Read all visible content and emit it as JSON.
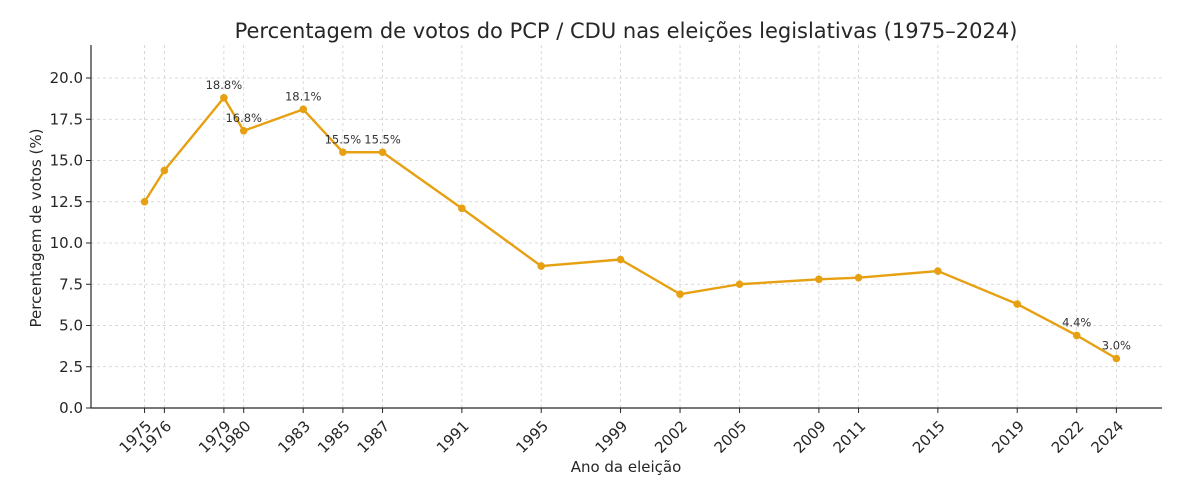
{
  "chart_data": {
    "type": "line",
    "title": "Percentagem de votos do PCP / CDU nas eleições legislativas (1975–2024)",
    "xlabel": "Ano da eleição",
    "ylabel": "Percentagem de votos (%)",
    "x": [
      1975,
      1976,
      1979,
      1980,
      1983,
      1985,
      1987,
      1991,
      1995,
      1999,
      2002,
      2005,
      2009,
      2011,
      2015,
      2019,
      2022,
      2024
    ],
    "x_tick_labels": [
      "1975",
      "1976",
      "1979",
      "1980",
      "1983",
      "1985",
      "1987",
      "1991",
      "1995",
      "1999",
      "2002",
      "2005",
      "2009",
      "2011",
      "2015",
      "2019",
      "2022",
      "2024"
    ],
    "series": [
      {
        "name": "PCP / CDU",
        "values": [
          12.5,
          14.4,
          18.8,
          16.8,
          18.1,
          15.5,
          15.5,
          12.1,
          8.6,
          9.0,
          6.9,
          7.5,
          7.8,
          7.9,
          8.3,
          6.3,
          4.4,
          3.0
        ],
        "color": "#e6a011"
      }
    ],
    "y_ticks": [
      "0.0",
      "2.5",
      "5.0",
      "7.5",
      "10.0",
      "12.5",
      "15.0",
      "17.5",
      "20.0"
    ],
    "ylim": [
      0,
      22
    ],
    "xlim": [
      1972.3,
      2026.3
    ],
    "grid": true,
    "annotations": [
      {
        "x": 1979,
        "y": 18.8,
        "text": "18.8%"
      },
      {
        "x": 1980,
        "y": 16.8,
        "text": "16.8%"
      },
      {
        "x": 1983,
        "y": 18.1,
        "text": "18.1%"
      },
      {
        "x": 1985,
        "y": 15.5,
        "text": "15.5%"
      },
      {
        "x": 1987,
        "y": 15.5,
        "text": "15.5%"
      },
      {
        "x": 2022,
        "y": 4.4,
        "text": "4.4%"
      },
      {
        "x": 2024,
        "y": 3.0,
        "text": "3.0%"
      }
    ]
  }
}
